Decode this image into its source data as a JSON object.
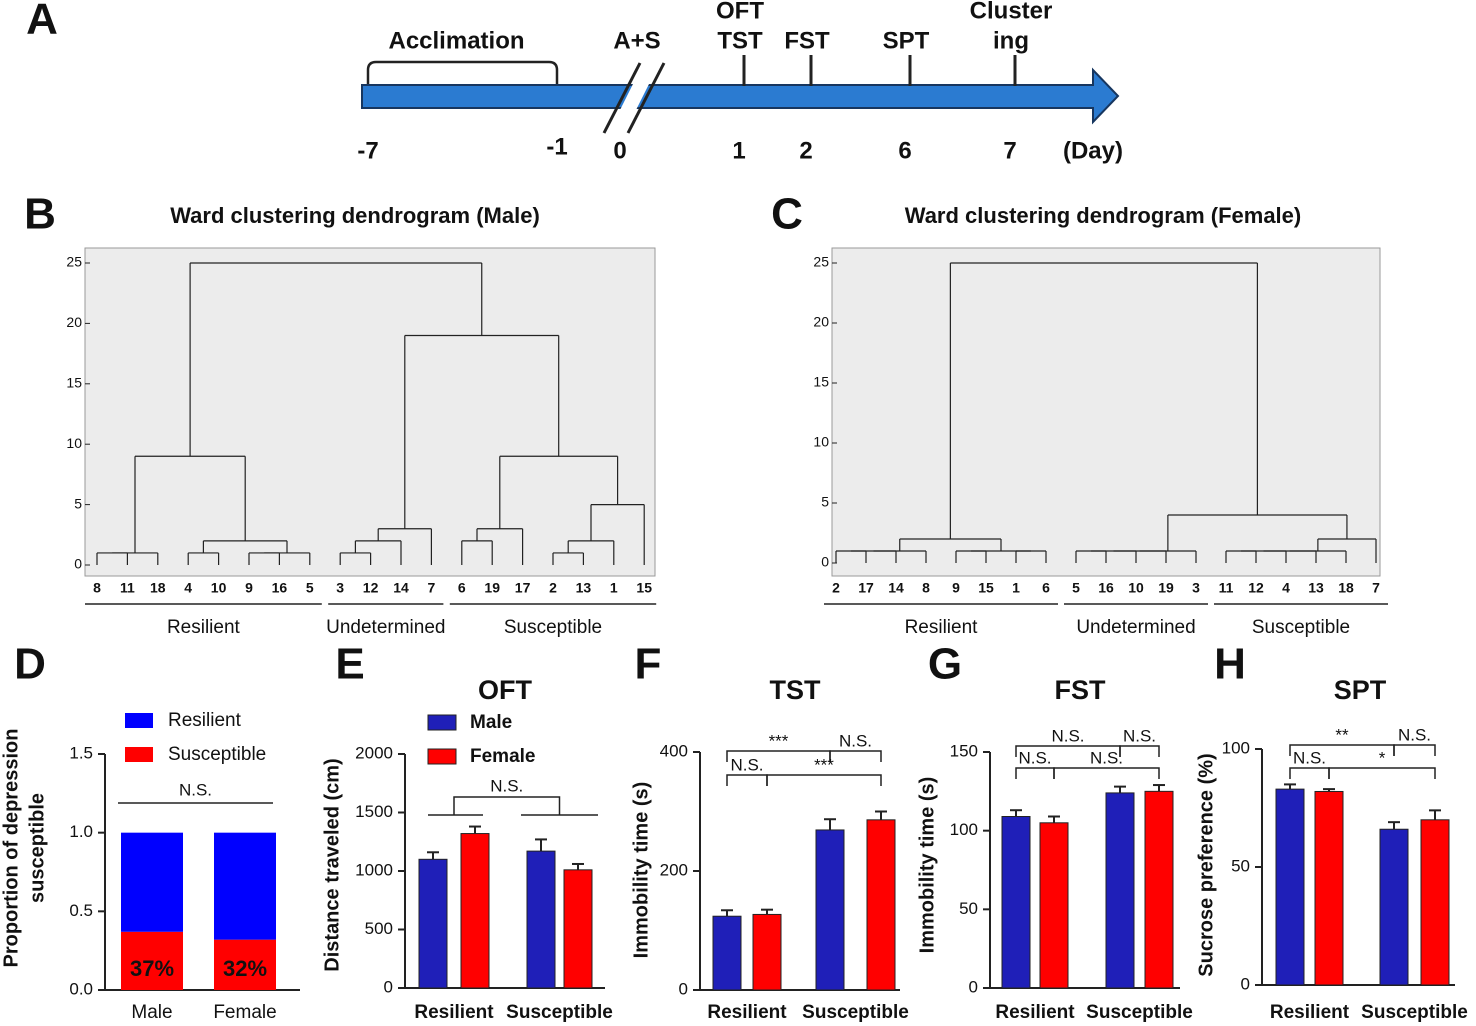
{
  "chart_data": [
    {
      "type": "timeline",
      "label": "A",
      "unit": "(Day)",
      "phases": [
        {
          "name": "Acclimation",
          "from": -7,
          "to": -1
        }
      ],
      "events": [
        {
          "day": 0,
          "labels": [
            "A+S"
          ]
        },
        {
          "day": 1,
          "labels": [
            "OFT",
            "TST"
          ]
        },
        {
          "day": 2,
          "labels": [
            "FST"
          ]
        },
        {
          "day": 6,
          "labels": [
            "SPT"
          ]
        },
        {
          "day": 7,
          "labels": [
            "Cluster",
            "ing"
          ]
        }
      ]
    },
    {
      "type": "dendrogram",
      "label": "B",
      "title": "Ward clustering  dendrogram (Male)",
      "ylim": [
        0,
        25
      ],
      "yticks": [
        0,
        5,
        10,
        15,
        20,
        25
      ],
      "groups": [
        "Resilient",
        "Undetermined",
        "Susceptible"
      ],
      "tree": {
        "height": 25,
        "children": [
          {
            "height": 9,
            "children": [
              {
                "height": 1,
                "children": [
                  {
                    "height": 1,
                    "children": [
                      8,
                      11
                    ]
                  },
                  18
                ]
              },
              {
                "height": 2,
                "children": [
                  {
                    "height": 1,
                    "children": [
                      4,
                      10
                    ]
                  },
                  {
                    "height": 1,
                    "children": [
                      {
                        "height": 1,
                        "children": [
                          9,
                          16
                        ]
                      },
                      5
                    ]
                  }
                ]
              }
            ]
          },
          {
            "height": 19,
            "children": [
              {
                "height": 3,
                "children": [
                  {
                    "height": 2,
                    "children": [
                      {
                        "height": 1,
                        "children": [
                          3,
                          12
                        ]
                      },
                      14
                    ]
                  },
                  7
                ]
              },
              {
                "height": 9,
                "children": [
                  {
                    "height": 3,
                    "children": [
                      {
                        "height": 2,
                        "children": [
                          6,
                          19
                        ]
                      },
                      17
                    ]
                  },
                  {
                    "height": 5,
                    "children": [
                      {
                        "height": 2,
                        "children": [
                          {
                            "height": 1,
                            "children": [
                              2,
                              13
                            ]
                          },
                          1
                        ]
                      },
                      15
                    ]
                  }
                ]
              }
            ]
          }
        ]
      }
    },
    {
      "type": "dendrogram",
      "label": "C",
      "title": "Ward clustering  dendrogram (Female)",
      "ylim": [
        0,
        25
      ],
      "yticks": [
        0,
        5,
        10,
        15,
        20,
        25
      ],
      "groups": [
        "Resilient",
        "Undetermined",
        "Susceptible"
      ],
      "tree": {
        "height": 25,
        "children": [
          {
            "height": 2,
            "children": [
              {
                "height": 1,
                "children": [
                  {
                    "height": 1,
                    "children": [
                      {
                        "height": 1,
                        "children": [
                          2,
                          17
                        ]
                      },
                      14
                    ]
                  },
                  8
                ]
              },
              {
                "height": 1,
                "children": [
                  {
                    "height": 1,
                    "children": [
                      9,
                      15
                    ]
                  },
                  {
                    "height": 1,
                    "children": [
                      1,
                      6
                    ]
                  }
                ]
              }
            ]
          },
          {
            "height": 4,
            "children": [
              {
                "height": 1,
                "children": [
                  {
                    "height": 1,
                    "children": [
                      {
                        "height": 1,
                        "children": [
                          {
                            "height": 1,
                            "children": [
                              5,
                              16
                            ]
                          },
                          10
                        ]
                      },
                      19
                    ]
                  },
                  3
                ]
              },
              {
                "height": 2,
                "children": [
                  {
                    "height": 1,
                    "children": [
                      {
                        "height": 1,
                        "children": [
                          {
                            "height": 1,
                            "children": [
                              {
                                "height": 1,
                                "children": [
                                  11,
                                  12
                                ]
                              },
                              4
                            ]
                          },
                          13
                        ]
                      },
                      18
                    ]
                  },
                  7
                ]
              }
            ]
          }
        ]
      }
    },
    {
      "type": "stacked_bar",
      "label": "D",
      "ylabel": [
        "Proportion of depression",
        "susceptible"
      ],
      "categories": [
        "Male",
        "Female"
      ],
      "series": [
        {
          "name": "Resilient",
          "color": "#0000ff",
          "values": [
            0.63,
            0.68
          ]
        },
        {
          "name": "Susceptible",
          "color": "#ff0000",
          "values": [
            0.37,
            0.32
          ],
          "value_labels": [
            "37%",
            "32%"
          ]
        }
      ],
      "ylim": [
        0,
        1.5
      ],
      "yticks": [
        {
          "value": 0,
          "label": "0.0"
        },
        {
          "value": 0.5,
          "label": "0.5"
        },
        {
          "value": 1,
          "label": "1.0"
        },
        {
          "value": 1.5,
          "label": "1.5"
        }
      ],
      "legend": "top",
      "annotations": [
        "N.S."
      ]
    },
    {
      "type": "bar",
      "label": "E",
      "title": "OFT",
      "ylabel": "Distance traveled (cm)",
      "categories": [
        "Resilient",
        "Susceptible"
      ],
      "series": [
        {
          "name": "Male",
          "color": "#1f1fb8",
          "values": [
            1100,
            1170
          ],
          "error": [
            60,
            100
          ]
        },
        {
          "name": "Female",
          "color": "#ff0000",
          "values": [
            1320,
            1010
          ],
          "error": [
            60,
            50
          ]
        }
      ],
      "ylim": [
        0,
        2000
      ],
      "yticks": [
        0,
        500,
        1000,
        1500,
        2000
      ],
      "legend": "top-left",
      "annotations": [
        "N.S."
      ]
    },
    {
      "type": "bar",
      "label": "F",
      "title": "TST",
      "ylabel": "Immobility time (s)",
      "categories": [
        "Resilient",
        "Susceptible"
      ],
      "series": [
        {
          "color": "#1f1fb8",
          "values": [
            124,
            269
          ],
          "error": [
            10,
            18
          ]
        },
        {
          "color": "#ff0000",
          "values": [
            127,
            286
          ],
          "error": [
            8,
            14
          ]
        }
      ],
      "ylim": [
        0,
        400
      ],
      "yticks": [
        0,
        200,
        400
      ],
      "annotations": [
        "***",
        "N.S.",
        "N.S.",
        "***"
      ]
    },
    {
      "type": "bar",
      "label": "G",
      "title": "FST",
      "ylabel": "Immobility time (s)",
      "categories": [
        "Resilient",
        "Susceptible"
      ],
      "series": [
        {
          "color": "#1f1fb8",
          "values": [
            109,
            124
          ],
          "error": [
            4,
            4
          ]
        },
        {
          "color": "#ff0000",
          "values": [
            105,
            125
          ],
          "error": [
            4,
            4
          ]
        }
      ],
      "ylim": [
        0,
        150
      ],
      "yticks": [
        0,
        50,
        100,
        150
      ],
      "annotations": [
        "N.S.",
        "N.S.",
        "N.S.",
        "N.S."
      ]
    },
    {
      "type": "bar",
      "label": "H",
      "title": "SPT",
      "ylabel": "Sucrose preference (%)",
      "categories": [
        "Resilient",
        "Susceptible"
      ],
      "series": [
        {
          "color": "#1f1fb8",
          "values": [
            83,
            66
          ],
          "error": [
            2,
            3
          ]
        },
        {
          "color": "#ff0000",
          "values": [
            82,
            70
          ],
          "error": [
            1,
            4
          ]
        }
      ],
      "ylim": [
        0,
        100
      ],
      "yticks": [
        0,
        50,
        100
      ],
      "annotations": [
        "**",
        "N.S.",
        "N.S.",
        "*"
      ]
    }
  ]
}
